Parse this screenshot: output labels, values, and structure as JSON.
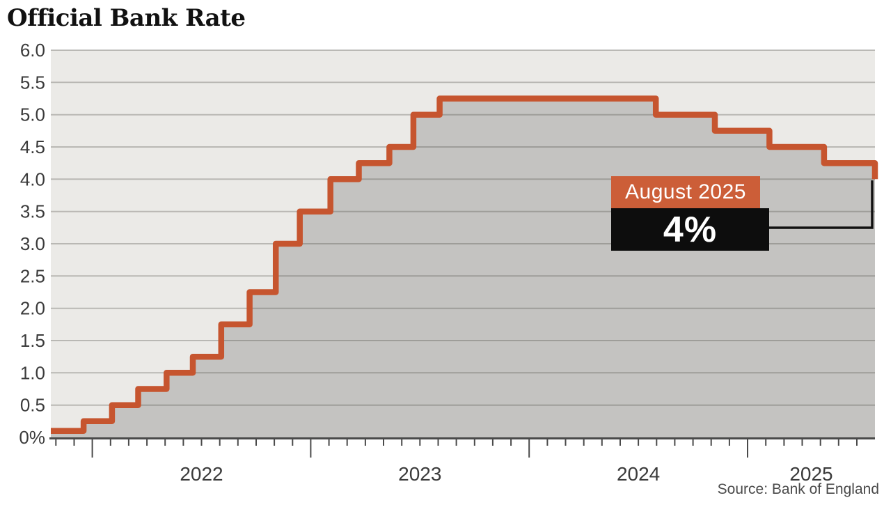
{
  "title": "Official Bank Rate",
  "source": "Source: Bank of England",
  "annotation": {
    "label": "August 2025",
    "value": "4%"
  },
  "colors": {
    "accent": "#cc5e38",
    "line": "#c6552f",
    "fill": "#c4c3c1",
    "plot_bg": "#ebeae7",
    "grid": "rgba(70,70,64,0.30)",
    "axis": "#4a4a4a",
    "label": "#3b3b3b",
    "badge_black": "#0d0d0d",
    "badge_text": "#ffffff",
    "connector": "#111111",
    "title_color": "#111111",
    "source_color": "#4a4a4a"
  },
  "chart_data": {
    "type": "area",
    "subtype": "step",
    "title": "Official Bank Rate",
    "unit": "%",
    "ylim": [
      0,
      6
    ],
    "x_domain": [
      2021.81,
      2025.583
    ],
    "grid": true,
    "legend": "none",
    "y_ticks": [
      {
        "value": 6.0,
        "label": "6.0"
      },
      {
        "value": 5.5,
        "label": "5.5"
      },
      {
        "value": 5.0,
        "label": "5.0"
      },
      {
        "value": 4.5,
        "label": "4.5"
      },
      {
        "value": 4.0,
        "label": "4.0"
      },
      {
        "value": 3.5,
        "label": "3.5"
      },
      {
        "value": 3.0,
        "label": "3.0"
      },
      {
        "value": 2.5,
        "label": "2.5"
      },
      {
        "value": 2.0,
        "label": "2.0"
      },
      {
        "value": 1.5,
        "label": "1.5"
      },
      {
        "value": 1.0,
        "label": "1.0"
      },
      {
        "value": 0.5,
        "label": "0.5"
      },
      {
        "value": 0.0,
        "label": "0%"
      }
    ],
    "x_year_labels": [
      "2022",
      "2023",
      "2024",
      "2025"
    ],
    "steps": [
      {
        "date": "start",
        "t": 2021.81,
        "rate": 0.1
      },
      {
        "date": "Dec 2021",
        "t": 2021.96,
        "rate": 0.25
      },
      {
        "date": "Feb 2022",
        "t": 2022.09,
        "rate": 0.5
      },
      {
        "date": "Mar 2022",
        "t": 2022.21,
        "rate": 0.75
      },
      {
        "date": "May 2022",
        "t": 2022.34,
        "rate": 1.0
      },
      {
        "date": "Jun 2022",
        "t": 2022.46,
        "rate": 1.25
      },
      {
        "date": "Aug 2022",
        "t": 2022.59,
        "rate": 1.75
      },
      {
        "date": "Sep 2022",
        "t": 2022.72,
        "rate": 2.25
      },
      {
        "date": "Nov 2022",
        "t": 2022.84,
        "rate": 3.0
      },
      {
        "date": "Dec 2022",
        "t": 2022.95,
        "rate": 3.5
      },
      {
        "date": "Feb 2023",
        "t": 2023.09,
        "rate": 4.0
      },
      {
        "date": "Mar 2023",
        "t": 2023.22,
        "rate": 4.25
      },
      {
        "date": "May 2023",
        "t": 2023.36,
        "rate": 4.5
      },
      {
        "date": "Jun 2023",
        "t": 2023.47,
        "rate": 5.0
      },
      {
        "date": "Aug 2023",
        "t": 2023.59,
        "rate": 5.25
      },
      {
        "date": "Aug 2024",
        "t": 2024.58,
        "rate": 5.0
      },
      {
        "date": "Nov 2024",
        "t": 2024.85,
        "rate": 4.75
      },
      {
        "date": "Feb 2025",
        "t": 2025.1,
        "rate": 4.5
      },
      {
        "date": "May 2025",
        "t": 2025.35,
        "rate": 4.25
      },
      {
        "date": "Aug 2025",
        "t": 2025.583,
        "rate": 4.0
      }
    ]
  }
}
